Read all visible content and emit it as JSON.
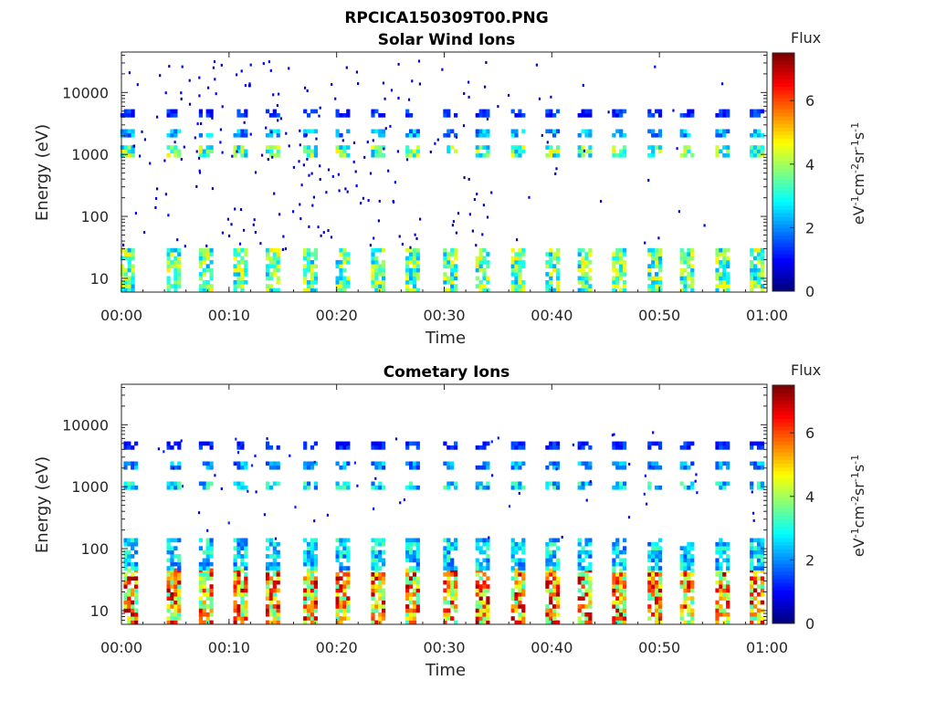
{
  "page_title": "RPCICA150309T00.PNG",
  "chart_data": [
    {
      "type": "heatmap",
      "title": "Solar Wind Ions",
      "xlabel": "Time",
      "ylabel": "Energy (eV)",
      "x_ticks": [
        "00:00",
        "00:10",
        "00:20",
        "00:30",
        "00:40",
        "00:50",
        "01:00"
      ],
      "x_range_minutes": [
        0,
        60
      ],
      "y_scale": "log",
      "y_range": [
        6,
        45000
      ],
      "y_ticks": [
        10,
        100,
        1000,
        10000
      ],
      "colorbar": {
        "label": "Flux",
        "units": "eV-1cm-2sr-1s-1",
        "range": [
          0,
          7.5
        ],
        "ticks": [
          0,
          2,
          4,
          6
        ]
      },
      "bursts_minutes": [
        0.5,
        4.8,
        7.8,
        11,
        14,
        17.5,
        20.5,
        23.8,
        27,
        30.5,
        33.5,
        36.8,
        40,
        43,
        46.2,
        49.5,
        52.5,
        55.8,
        59
      ],
      "bands": [
        {
          "e_min": 6,
          "e_max": 30,
          "level": 3.5
        },
        {
          "e_min": 900,
          "e_max": 1300,
          "level": 3.5
        },
        {
          "e_min": 1900,
          "e_max": 2400,
          "level": 2.2
        },
        {
          "e_min": 4000,
          "e_max": 4800,
          "level": 1.2
        }
      ],
      "scatter": {
        "level": 0.6,
        "e_min": 30,
        "e_max": 40000
      },
      "grid": false
    },
    {
      "type": "heatmap",
      "title": "Cometary Ions",
      "xlabel": "Time",
      "ylabel": "Energy (eV)",
      "x_ticks": [
        "00:00",
        "00:10",
        "00:20",
        "00:30",
        "00:40",
        "00:50",
        "01:00"
      ],
      "x_range_minutes": [
        0,
        60
      ],
      "y_scale": "log",
      "y_range": [
        6,
        45000
      ],
      "y_ticks": [
        10,
        100,
        1000,
        10000
      ],
      "colorbar": {
        "label": "Flux",
        "units": "eV-1cm-2sr-1s-1",
        "range": [
          0,
          7.5
        ],
        "ticks": [
          0,
          2,
          4,
          6
        ]
      },
      "bursts_minutes": [
        0.8,
        4.8,
        7.8,
        11,
        14,
        17.5,
        20.5,
        23.8,
        27,
        30.5,
        33.5,
        36.8,
        40,
        43,
        46.2,
        49.5,
        52.5,
        55.8,
        59
      ],
      "bands": [
        {
          "e_min": 6,
          "e_max": 45,
          "level": 5.2
        },
        {
          "e_min": 45,
          "e_max": 130,
          "level": 2.5
        },
        {
          "e_min": 900,
          "e_max": 1200,
          "level": 2.6
        },
        {
          "e_min": 1900,
          "e_max": 2400,
          "level": 2.0
        },
        {
          "e_min": 4000,
          "e_max": 4800,
          "level": 1.2
        }
      ],
      "scatter": {
        "level": 0.9,
        "e_min": 150,
        "e_max": 9000
      },
      "grid": false
    }
  ]
}
